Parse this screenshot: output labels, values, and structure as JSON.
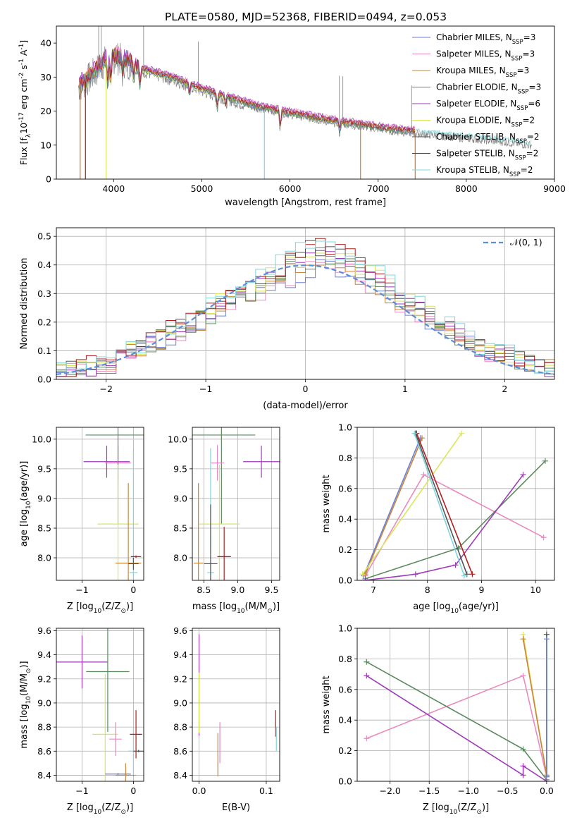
{
  "figure": {
    "title": "PLATE=0580, MJD=52368, FIBERID=0494, z=0.053"
  },
  "colors": {
    "chabrier_miles": "#6b7fd8",
    "salpeter_miles": "#e98ac0",
    "kroupa_miles": "#c8863a",
    "chabrier_elodie": "#5b8a60",
    "salpeter_elodie": "#9e3ab8",
    "kroupa_elodie": "#d9e65c",
    "chabrier_stelib": "#555555",
    "salpeter_stelib": "#b01e1e",
    "kroupa_stelib": "#7fd6dc",
    "data_gray": "#808080",
    "orange_accent": "#e2712a",
    "normal_curve": "#5b8dd9",
    "grid": "#b0b0b0"
  },
  "chart_data": [
    {
      "type": "line",
      "title": "PLATE=0580, MJD=52368, FIBERID=0494, z=0.053",
      "xlabel": "wavelength [Angstrom, rest frame]",
      "ylabel_main": "Flux [f",
      "ylabel_sub": "λ",
      "ylabel_mid": "10",
      "ylabel_exp1": "-17",
      "ylabel_unit": " erg cm",
      "ylabel_exp2": "-2",
      "ylabel_unit2": " s",
      "ylabel_exp3": "-1",
      "ylabel_unit3": " A",
      "ylabel_exp4": "-1",
      "ylabel_end": "]",
      "xlim": [
        3350,
        9000
      ],
      "ylim": [
        0,
        45
      ],
      "xticks": [
        "4000",
        "5000",
        "6000",
        "7000",
        "8000",
        "9000"
      ],
      "xtick_values": [
        4000,
        5000,
        6000,
        7000,
        8000,
        9000
      ],
      "yticks": [
        "0",
        "10",
        "20",
        "30",
        "40"
      ],
      "ytick_values": [
        0,
        10,
        20,
        30,
        40
      ],
      "grid": false,
      "legend_placement": "top-right",
      "legend": [
        {
          "label": "Chabrier MILES, N",
          "sub": "SSP",
          "tail": "=3",
          "color_key": "chabrier_miles"
        },
        {
          "label": "Salpeter MILES, N",
          "sub": "SSP",
          "tail": "=3",
          "color_key": "salpeter_miles"
        },
        {
          "label": "Kroupa MILES, N",
          "sub": "SSP",
          "tail": "=3",
          "color_key": "kroupa_miles"
        },
        {
          "label": "Chabrier ELODIE, N",
          "sub": "SSP",
          "tail": "=3",
          "color_key": "chabrier_elodie"
        },
        {
          "label": "Salpeter ELODIE, N",
          "sub": "SSP",
          "tail": "=6",
          "color_key": "salpeter_elodie"
        },
        {
          "label": "Kroupa ELODIE, N",
          "sub": "SSP",
          "tail": "=2",
          "color_key": "kroupa_elodie"
        },
        {
          "label": "Chabrier STELIB, N",
          "sub": "SSP",
          "tail": "=2",
          "color_key": "chabrier_stelib"
        },
        {
          "label": "Salpeter STELIB, N",
          "sub": "SSP",
          "tail": "=2",
          "color_key": "salpeter_stelib"
        },
        {
          "label": "Kroupa STELIB, N",
          "sub": "SSP",
          "tail": "=2",
          "color_key": "kroupa_stelib"
        }
      ],
      "spectrum_trend": {
        "x": [
          3600,
          3700,
          3850,
          3950,
          4100,
          4300,
          4500,
          4700,
          5000,
          5300,
          5600,
          6000,
          6400,
          6800,
          7200,
          7600,
          8000,
          8400,
          8700
        ],
        "y": [
          27,
          29,
          33,
          36,
          35,
          32,
          30.5,
          29,
          26,
          23.5,
          21,
          19,
          17,
          15.5,
          14,
          13,
          12,
          11,
          10
        ]
      },
      "absorption_dips": [
        {
          "x": 3933,
          "depth": 8
        },
        {
          "x": 3968,
          "depth": 8
        },
        {
          "x": 4101,
          "depth": 4
        },
        {
          "x": 4227,
          "depth": 4
        },
        {
          "x": 4300,
          "depth": 5
        },
        {
          "x": 4861,
          "depth": 3
        },
        {
          "x": 5175,
          "depth": 4
        },
        {
          "x": 5270,
          "depth": 3
        },
        {
          "x": 5890,
          "depth": 5
        },
        {
          "x": 6563,
          "depth": 3
        }
      ],
      "spikes_to_zero": [
        3620,
        3680,
        3915,
        5710,
        6800,
        7420
      ],
      "spikes_up": [
        3830,
        3860,
        4340,
        4960,
        6560,
        6600,
        7380
      ]
    },
    {
      "type": "line",
      "xlabel": "(data-model)/error",
      "ylabel": "Normed distribution",
      "xlim": [
        -2.5,
        2.5
      ],
      "ylim": [
        0,
        0.53
      ],
      "xticks": [
        "−2",
        "−1",
        "0",
        "1",
        "2"
      ],
      "xtick_values": [
        -2,
        -1,
        0,
        1,
        2
      ],
      "yticks": [
        "0.0",
        "0.1",
        "0.2",
        "0.3",
        "0.4",
        "0.5"
      ],
      "ytick_values": [
        0,
        0.1,
        0.2,
        0.3,
        0.4,
        0.5
      ],
      "grid": true,
      "legend_placement": "top-right",
      "legend": [
        {
          "label": "𝒩(0, 1)",
          "style": "dashed",
          "color_key": "normal_curve"
        }
      ],
      "bin_edges_start": -2.5,
      "bin_width": 0.1,
      "histogram_base": [
        0.03,
        0.035,
        0.04,
        0.045,
        0.05,
        0.06,
        0.08,
        0.1,
        0.11,
        0.13,
        0.14,
        0.16,
        0.17,
        0.19,
        0.21,
        0.23,
        0.26,
        0.28,
        0.3,
        0.31,
        0.33,
        0.35,
        0.37,
        0.39,
        0.41,
        0.43,
        0.44,
        0.42,
        0.41,
        0.4,
        0.38,
        0.36,
        0.34,
        0.31,
        0.29,
        0.26,
        0.24,
        0.22,
        0.2,
        0.18,
        0.15,
        0.13,
        0.11,
        0.1,
        0.09,
        0.08,
        0.07,
        0.06,
        0.05,
        0.04,
        0.035
      ]
    },
    {
      "type": "scatter",
      "xlabel": "Z [log",
      "xlabel_sub": "10",
      "xlabel_end": "(Z/Z",
      "xlabel_sun_sub": "⊙",
      "xlabel_close": ")]",
      "ylabel": "age  [log",
      "ylabel_sub": "10",
      "ylabel_end": "(age/yr)]",
      "xlim": [
        -1.5,
        0.2
      ],
      "ylim": [
        7.62,
        10.2
      ],
      "xticks": [
        "−1",
        "0"
      ],
      "xtick_values": [
        -1,
        0
      ],
      "yticks": [
        "8.0",
        "8.5",
        "9.0",
        "9.5",
        "10.0"
      ],
      "ytick_values": [
        8.0,
        8.5,
        9.0,
        9.5,
        10.0
      ],
      "grid": true,
      "markers": [
        {
          "color_key": "salpeter_elodie",
          "x": -0.52,
          "y": 9.62,
          "xerr": 0.45,
          "yerr": 0.27
        },
        {
          "color_key": "salpeter_miles",
          "x": -0.3,
          "y": 9.6,
          "xerr": 0.25,
          "yerr": 0.3
        },
        {
          "color_key": "chabrier_elodie",
          "x": -0.3,
          "y": 10.07,
          "xerr": 0.63,
          "yerr": 1.5
        },
        {
          "color_key": "kroupa_elodie",
          "x": -0.3,
          "y": 8.57,
          "xerr": 0.4,
          "yerr": 1.0
        },
        {
          "color_key": "kroupa_miles",
          "x": -0.1,
          "y": 7.91,
          "xerr": 0.25,
          "yerr": 1.35
        },
        {
          "color_key": "kroupa_stelib",
          "x": 0.0,
          "y": 7.75,
          "xerr": 0.08,
          "yerr": 2.1
        },
        {
          "color_key": "salpeter_stelib",
          "x": 0.05,
          "y": 8.02,
          "xerr": 0.1,
          "yerr": 0.02
        },
        {
          "color_key": "chabrier_stelib",
          "x": 0.0,
          "y": 7.9,
          "xerr": 0.1,
          "yerr": 0.1
        }
      ]
    },
    {
      "type": "scatter",
      "xlabel": "mass [log",
      "xlabel_sub": "10",
      "xlabel_end": "(M/M",
      "xlabel_sun_sub": "⊙",
      "xlabel_close": ")]",
      "xlim": [
        8.33,
        9.62
      ],
      "ylim": [
        7.62,
        10.2
      ],
      "xticks": [
        "8.5",
        "9.0",
        "9.5"
      ],
      "xtick_values": [
        8.5,
        9.0,
        9.5
      ],
      "yticks": [
        "8.0",
        "8.5",
        "9.0",
        "9.5",
        "10.0"
      ],
      "ytick_values": [
        8.0,
        8.5,
        9.0,
        9.5,
        10.0
      ],
      "grid": true,
      "markers": [
        {
          "color_key": "salpeter_elodie",
          "x": 9.35,
          "y": 9.62,
          "xerr": 0.27,
          "yerr": 0.27
        },
        {
          "color_key": "chabrier_elodie",
          "x": 8.76,
          "y": 10.07,
          "xerr": 0.5,
          "yerr": 1.5
        },
        {
          "color_key": "salpeter_miles",
          "x": 8.7,
          "y": 9.6,
          "xerr": 0.1,
          "yerr": 0.3
        },
        {
          "color_key": "kroupa_elodie",
          "x": 8.73,
          "y": 8.57,
          "xerr": 0.3,
          "yerr": 1.0
        },
        {
          "color_key": "kroupa_miles",
          "x": 8.42,
          "y": 7.91,
          "xerr": 0.07,
          "yerr": 1.35
        },
        {
          "color_key": "kroupa_stelib",
          "x": 8.6,
          "y": 7.75,
          "xerr": 0.05,
          "yerr": 2.1
        },
        {
          "color_key": "salpeter_stelib",
          "x": 8.8,
          "y": 8.02,
          "xerr": 0.1,
          "yerr": 0.5
        },
        {
          "color_key": "chabrier_stelib",
          "x": 8.6,
          "y": 7.9,
          "xerr": 0.1,
          "yerr": 1.0
        }
      ]
    },
    {
      "type": "line",
      "xlabel": "age  [log",
      "xlabel_sub": "10",
      "xlabel_end": "(age/yr)]",
      "ylabel": "mass weight",
      "xlim": [
        6.7,
        10.35
      ],
      "ylim": [
        0,
        1.0
      ],
      "xticks": [
        "7",
        "8",
        "9",
        "10"
      ],
      "xtick_values": [
        7,
        8,
        9,
        10
      ],
      "yticks": [
        "0.0",
        "0.2",
        "0.4",
        "0.6",
        "0.8",
        "1.0"
      ],
      "ytick_values": [
        0,
        0.2,
        0.4,
        0.6,
        0.8,
        1.0
      ],
      "grid": true,
      "series": [
        {
          "color_key": "chabrier_miles",
          "x": [
            6.82,
            7.87
          ],
          "y": [
            0.03,
            0.93
          ]
        },
        {
          "color_key": "salpeter_miles",
          "x": [
            6.85,
            7.93,
            10.15
          ],
          "y": [
            0.03,
            0.69,
            0.28
          ]
        },
        {
          "color_key": "kroupa_miles",
          "x": [
            6.85,
            7.9
          ],
          "y": [
            0.04,
            0.93
          ]
        },
        {
          "color_key": "chabrier_elodie",
          "x": [
            6.85,
            8.57,
            10.18
          ],
          "y": [
            0.01,
            0.21,
            0.78
          ]
        },
        {
          "color_key": "salpeter_elodie",
          "x": [
            6.85,
            7.78,
            8.52,
            9.77
          ],
          "y": [
            0.0,
            0.04,
            0.1,
            0.69
          ]
        },
        {
          "color_key": "kroupa_elodie",
          "x": [
            6.8,
            8.63
          ],
          "y": [
            0.04,
            0.96
          ]
        },
        {
          "color_key": "chabrier_stelib",
          "x": [
            7.78,
            8.73
          ],
          "y": [
            0.96,
            0.04
          ]
        },
        {
          "color_key": "salpeter_stelib",
          "x": [
            7.8,
            8.83
          ],
          "y": [
            0.96,
            0.04
          ]
        },
        {
          "color_key": "kroupa_stelib",
          "x": [
            7.76,
            8.68
          ],
          "y": [
            0.96,
            0.03
          ]
        }
      ]
    },
    {
      "type": "scatter",
      "xlabel": "Z [log",
      "xlabel_sub": "10",
      "xlabel_end": "(Z/Z",
      "xlabel_sun_sub": "⊙",
      "xlabel_close": ")]",
      "ylabel": "mass [log",
      "ylabel_sub": "10",
      "ylabel_end": "(M/M",
      "ylabel_sun_sub": "⊙",
      "ylabel_close": ")]",
      "xlim": [
        -1.5,
        0.2
      ],
      "ylim": [
        8.35,
        9.62
      ],
      "xticks": [
        "−1",
        "0"
      ],
      "xtick_values": [
        -1,
        0
      ],
      "yticks": [
        "8.4",
        "8.6",
        "8.8",
        "9.0",
        "9.2",
        "9.4",
        "9.6"
      ],
      "ytick_values": [
        8.4,
        8.6,
        8.8,
        9.0,
        9.2,
        9.4,
        9.6
      ],
      "grid": true,
      "markers": [
        {
          "color_key": "salpeter_elodie",
          "x": -1.0,
          "y": 9.34,
          "xerr": 0.5,
          "yerr": 0.22
        },
        {
          "color_key": "chabrier_elodie",
          "x": -0.5,
          "y": 9.26,
          "xerr": 0.42,
          "yerr": 0.5
        },
        {
          "color_key": "kroupa_elodie",
          "x": -0.55,
          "y": 8.74,
          "xerr": 0.25,
          "yerr": 0.5
        },
        {
          "color_key": "salpeter_miles",
          "x": -0.35,
          "y": 8.7,
          "xerr": 0.12,
          "yerr": 0.14
        },
        {
          "color_key": "kroupa_stelib",
          "x": 0.0,
          "y": 8.6,
          "xerr": 0.1,
          "yerr": 0.2
        },
        {
          "color_key": "salpeter_stelib",
          "x": 0.05,
          "y": 8.74,
          "xerr": 0.12,
          "yerr": 0.2
        },
        {
          "color_key": "chabrier_miles",
          "x": -0.3,
          "y": 8.41,
          "xerr": 0.25,
          "yerr": 0.01
        },
        {
          "color_key": "kroupa_miles",
          "x": -0.15,
          "y": 8.4,
          "xerr": 0.2,
          "yerr": 0.1
        },
        {
          "color_key": "chabrier_stelib",
          "x": 0.1,
          "y": 8.6,
          "xerr": 0.1,
          "yerr": 0.01
        }
      ]
    },
    {
      "type": "scatter",
      "xlabel": "E(B-V)",
      "xlim": [
        -0.01,
        0.12
      ],
      "ylim": [
        8.35,
        9.62
      ],
      "xticks": [
        "0.0",
        "0.1"
      ],
      "xtick_values": [
        0,
        0.1
      ],
      "yticks": [
        "8.4",
        "8.6",
        "8.8",
        "9.0",
        "9.2",
        "9.4",
        "9.6"
      ],
      "ytick_values": [
        8.4,
        8.6,
        8.8,
        9.0,
        9.2,
        9.4,
        9.6
      ],
      "grid": true,
      "markers": [
        {
          "color_key": "salpeter_elodie",
          "x": 0.0,
          "y": 9.15,
          "xerr": 0,
          "yerr": 0.42
        },
        {
          "color_key": "kroupa_elodie",
          "x": 0.0,
          "y": 9.0,
          "xerr": 0,
          "yerr": 0.25
        },
        {
          "color_key": "salpeter_miles",
          "x": 0.031,
          "y": 8.67,
          "xerr": 0,
          "yerr": 0.17
        },
        {
          "color_key": "kroupa_miles",
          "x": 0.028,
          "y": 8.57,
          "xerr": 0,
          "yerr": 0.18
        },
        {
          "color_key": "salpeter_stelib",
          "x": 0.114,
          "y": 8.83,
          "xerr": 0,
          "yerr": 0.11
        },
        {
          "color_key": "kroupa_stelib",
          "x": 0.115,
          "y": 8.7,
          "xerr": 0,
          "yerr": 0.1
        }
      ]
    },
    {
      "type": "line",
      "xlabel": "Z [log",
      "xlabel_sub": "10",
      "xlabel_end": "(Z/Z",
      "xlabel_sun_sub": "⊙",
      "xlabel_close": ")]",
      "ylabel": "mass weight",
      "xlim": [
        -2.42,
        0.1
      ],
      "ylim": [
        0,
        1.0
      ],
      "xticks": [
        "−2.0",
        "−1.5",
        "−1.0",
        "−0.5",
        "0.0"
      ],
      "xtick_values": [
        -2.0,
        -1.5,
        -1.0,
        -0.5,
        0.0
      ],
      "yticks": [
        "0.0",
        "0.2",
        "0.4",
        "0.6",
        "0.8",
        "1.0"
      ],
      "ytick_values": [
        0,
        0.2,
        0.4,
        0.6,
        0.8,
        1.0
      ],
      "grid": true,
      "series": [
        {
          "color_key": "salpeter_miles",
          "x": [
            -2.3,
            -0.3,
            0.0
          ],
          "y": [
            0.28,
            0.69,
            0.03
          ]
        },
        {
          "color_key": "chabrier_elodie",
          "x": [
            -2.3,
            -0.3,
            0.0
          ],
          "y": [
            0.78,
            0.21,
            0.01
          ]
        },
        {
          "color_key": "salpeter_elodie",
          "x": [
            -2.3,
            -0.3,
            -0.3,
            0.0
          ],
          "y": [
            0.69,
            0.04,
            0.1,
            0.0
          ]
        },
        {
          "color_key": "kroupa_elodie",
          "x": [
            -0.3,
            0.0
          ],
          "y": [
            0.96,
            0.04
          ]
        },
        {
          "color_key": "kroupa_miles",
          "x": [
            -0.3,
            0.0
          ],
          "y": [
            0.93,
            0.04
          ]
        },
        {
          "color_key": "kroupa_stelib",
          "x": [
            0.0,
            0.0
          ],
          "y": [
            0.96,
            0.03
          ]
        },
        {
          "color_key": "chabrier_stelib",
          "x": [
            0.0,
            0.0
          ],
          "y": [
            0.96,
            0.03
          ]
        },
        {
          "color_key": "chabrier_miles",
          "x": [
            0.0,
            0.0
          ],
          "y": [
            0.93,
            0.03
          ]
        }
      ]
    }
  ]
}
